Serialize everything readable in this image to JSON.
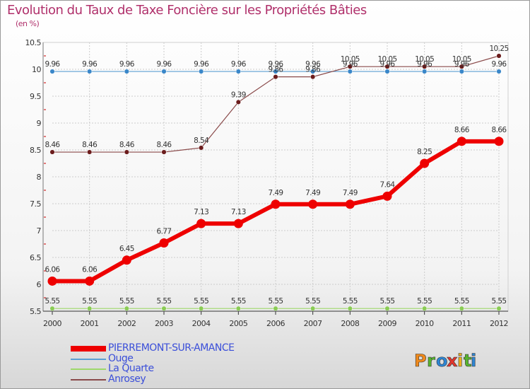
{
  "title": "Evolution du Taux de Taxe Foncière sur les Propriétés Bâties",
  "unit": "(en %)",
  "brand": [
    "P",
    "r",
    "o",
    "x",
    "i",
    "t",
    "i"
  ],
  "chart_data": {
    "type": "line",
    "title": "Evolution du Taux de Taxe Foncière sur les Propriétés Bâties",
    "ylabel": "(en %)",
    "xlabel": "",
    "ylim": [
      5.5,
      10.5
    ],
    "yticks": [
      5.5,
      6,
      6.5,
      7,
      7.5,
      8,
      8.5,
      9,
      9.5,
      10,
      10.5
    ],
    "ytick_labels": [
      "5.5",
      "6",
      "6.5",
      "7",
      "7.5",
      "8",
      "8.5",
      "9",
      "9.5",
      "10",
      "10.5"
    ],
    "categories": [
      "2000",
      "2001",
      "2002",
      "2003",
      "2004",
      "2005",
      "2006",
      "2007",
      "2008",
      "2009",
      "2010",
      "2011",
      "2012"
    ],
    "series": [
      {
        "name": "PIERREMONT-SUR-AMANCE",
        "color": "#ee0000",
        "marker_color": "#ee0000",
        "values": [
          6.06,
          6.06,
          6.45,
          6.77,
          7.13,
          7.13,
          7.49,
          7.49,
          7.49,
          7.64,
          8.25,
          8.66,
          8.66
        ],
        "labels": [
          "6.06",
          "6.06",
          "6.45",
          "6.77",
          "7.13",
          "7.13",
          "7.49",
          "7.49",
          "7.49",
          "7.64",
          "8.25",
          "8.66",
          "8.66"
        ]
      },
      {
        "name": "Ouge",
        "color": "#5b9fd3",
        "marker_color": "#3a87c9",
        "values": [
          9.96,
          9.96,
          9.96,
          9.96,
          9.96,
          9.96,
          9.96,
          9.96,
          9.96,
          9.96,
          9.96,
          9.96,
          9.96
        ],
        "labels": [
          "9.96",
          "9.96",
          "9.96",
          "9.96",
          "9.96",
          "9.96",
          "9.96",
          "9.96",
          "9.96",
          "9.96",
          "9.96",
          "9.96",
          "9.96"
        ]
      },
      {
        "name": "La Quarte",
        "color": "#9ed86a",
        "marker_color": "#8acb55",
        "values": [
          5.55,
          5.55,
          5.55,
          5.55,
          5.55,
          5.55,
          5.55,
          5.55,
          5.55,
          5.55,
          5.55,
          5.55,
          5.55
        ],
        "labels": [
          "5.55",
          "5.55",
          "5.55",
          "5.55",
          "5.55",
          "5.55",
          "5.55",
          "5.55",
          "5.55",
          "5.55",
          "5.55",
          "5.55",
          "5.55"
        ]
      },
      {
        "name": "Anrosey",
        "color": "#8a4a4a",
        "marker_color": "#6b1c1c",
        "values": [
          8.46,
          8.46,
          8.46,
          8.46,
          8.54,
          9.39,
          9.86,
          9.86,
          10.05,
          10.05,
          10.05,
          10.05,
          10.25
        ],
        "labels": [
          "8.46",
          "8.46",
          "8.46",
          "8.46",
          "8.54",
          "9.39",
          "9.86",
          "9.86",
          "10.05",
          "10.05",
          "10.05",
          "10.05",
          "10.25"
        ]
      }
    ]
  }
}
